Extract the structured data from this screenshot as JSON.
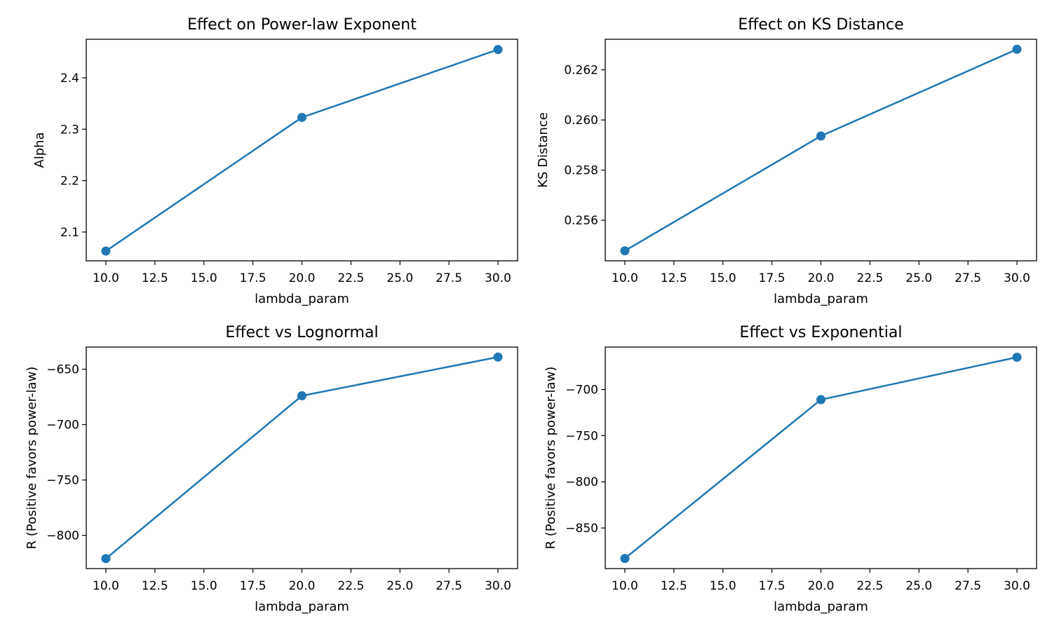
{
  "chart_data": [
    {
      "type": "line",
      "title": "Effect on Power-law Exponent",
      "xlabel": "lambda_param",
      "ylabel": "Alpha",
      "x": [
        10,
        20,
        30
      ],
      "y": [
        2.063,
        2.323,
        2.455
      ],
      "xlim": [
        9.0,
        31.0
      ],
      "ylim": [
        2.044,
        2.475
      ],
      "xticks": [
        10.0,
        12.5,
        15.0,
        17.5,
        20.0,
        22.5,
        25.0,
        27.5,
        30.0
      ],
      "xtick_labels": [
        "10.0",
        "12.5",
        "15.0",
        "17.5",
        "20.0",
        "22.5",
        "25.0",
        "27.5",
        "30.0"
      ],
      "yticks": [
        2.1,
        2.2,
        2.3,
        2.4
      ],
      "ytick_labels": [
        "2.1",
        "2.2",
        "2.3",
        "2.4"
      ],
      "color": "#1f77b4",
      "grid": false
    },
    {
      "type": "line",
      "title": "Effect on KS Distance",
      "xlabel": "lambda_param",
      "ylabel": "KS Distance",
      "x": [
        10,
        20,
        30
      ],
      "y": [
        0.25478,
        0.25936,
        0.26282
      ],
      "xlim": [
        9.0,
        31.0
      ],
      "ylim": [
        0.25438,
        0.26322
      ],
      "xticks": [
        10.0,
        12.5,
        15.0,
        17.5,
        20.0,
        22.5,
        25.0,
        27.5,
        30.0
      ],
      "xtick_labels": [
        "10.0",
        "12.5",
        "15.0",
        "17.5",
        "20.0",
        "22.5",
        "25.0",
        "27.5",
        "30.0"
      ],
      "yticks": [
        0.256,
        0.258,
        0.26,
        0.262
      ],
      "ytick_labels": [
        "0.256",
        "0.258",
        "0.260",
        "0.262"
      ],
      "color": "#1f77b4",
      "grid": false
    },
    {
      "type": "line",
      "title": "Effect vs Lognormal",
      "xlabel": "lambda_param",
      "ylabel": "R (Positive favors power-law)",
      "x": [
        10,
        20,
        30
      ],
      "y": [
        -821,
        -674,
        -639
      ],
      "xlim": [
        9.0,
        31.0
      ],
      "ylim": [
        -830,
        -630
      ],
      "xticks": [
        10.0,
        12.5,
        15.0,
        17.5,
        20.0,
        22.5,
        25.0,
        27.5,
        30.0
      ],
      "xtick_labels": [
        "10.0",
        "12.5",
        "15.0",
        "17.5",
        "20.0",
        "22.5",
        "25.0",
        "27.5",
        "30.0"
      ],
      "yticks": [
        -800,
        -750,
        -700,
        -650
      ],
      "ytick_labels": [
        "−800",
        "−750",
        "−700",
        "−650"
      ],
      "color": "#1f77b4",
      "grid": false
    },
    {
      "type": "line",
      "title": "Effect vs Exponential",
      "xlabel": "lambda_param",
      "ylabel": "R (Positive favors power-law)",
      "x": [
        10,
        20,
        30
      ],
      "y": [
        -883,
        -711,
        -665
      ],
      "xlim": [
        9.0,
        31.0
      ],
      "ylim": [
        -894,
        -654
      ],
      "xticks": [
        10.0,
        12.5,
        15.0,
        17.5,
        20.0,
        22.5,
        25.0,
        27.5,
        30.0
      ],
      "xtick_labels": [
        "10.0",
        "12.5",
        "15.0",
        "17.5",
        "20.0",
        "22.5",
        "25.0",
        "27.5",
        "30.0"
      ],
      "yticks": [
        -850,
        -800,
        -750,
        -700
      ],
      "ytick_labels": [
        "−850",
        "−800",
        "−750",
        "−700"
      ],
      "color": "#1f77b4",
      "grid": false
    }
  ]
}
